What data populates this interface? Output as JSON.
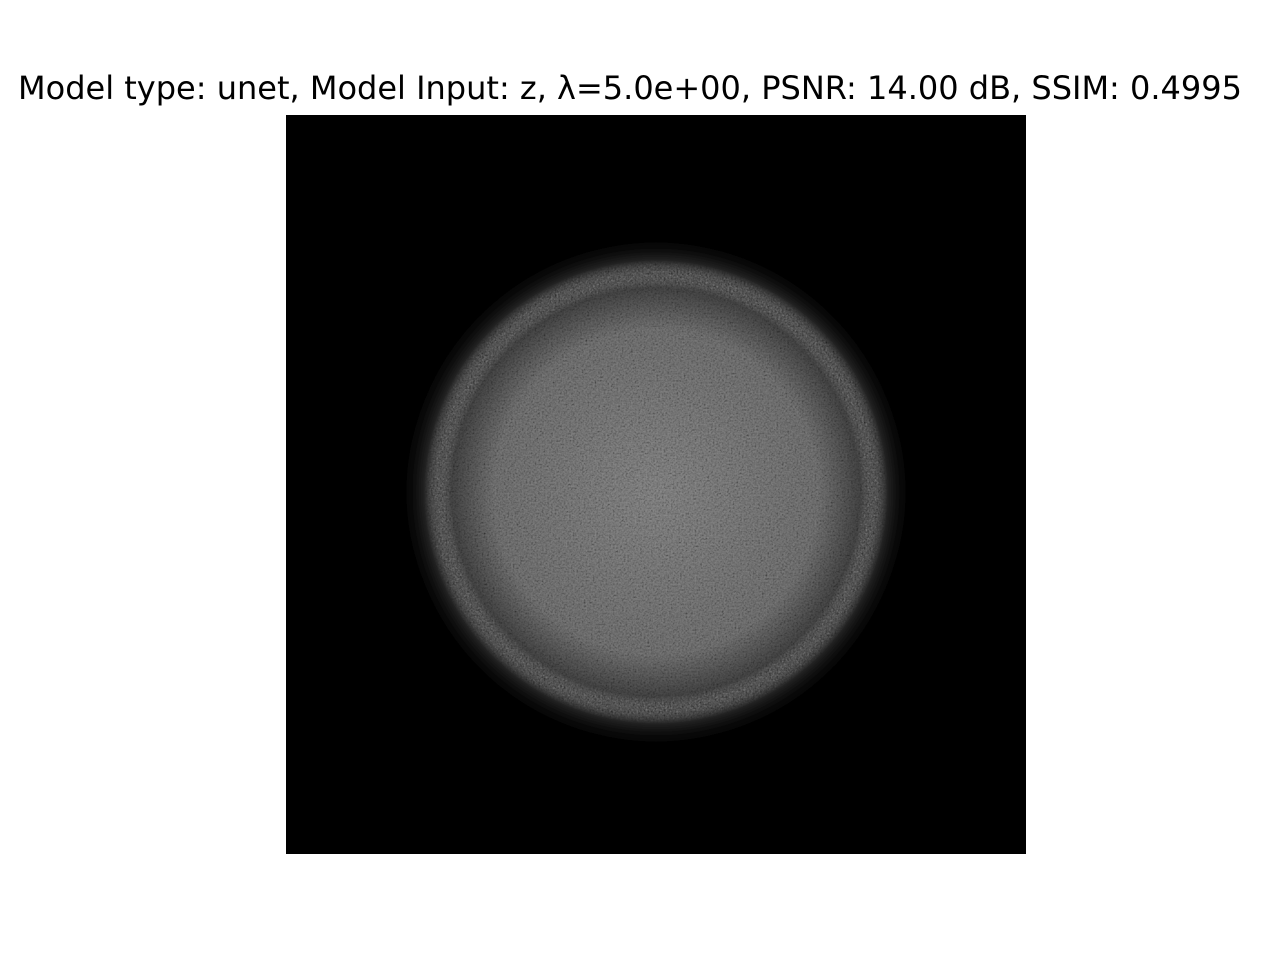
{
  "figure": {
    "title": "Model type: unet, Model Input: z, λ=5.0e+00, PSNR: 14.00 dB, SSIM: 0.4995",
    "image_description_icon": "noisy-bright-disk-image",
    "colors": {
      "background": "#ffffff",
      "image_background": "#000000",
      "disk_peak": "#8a8a8a"
    }
  }
}
